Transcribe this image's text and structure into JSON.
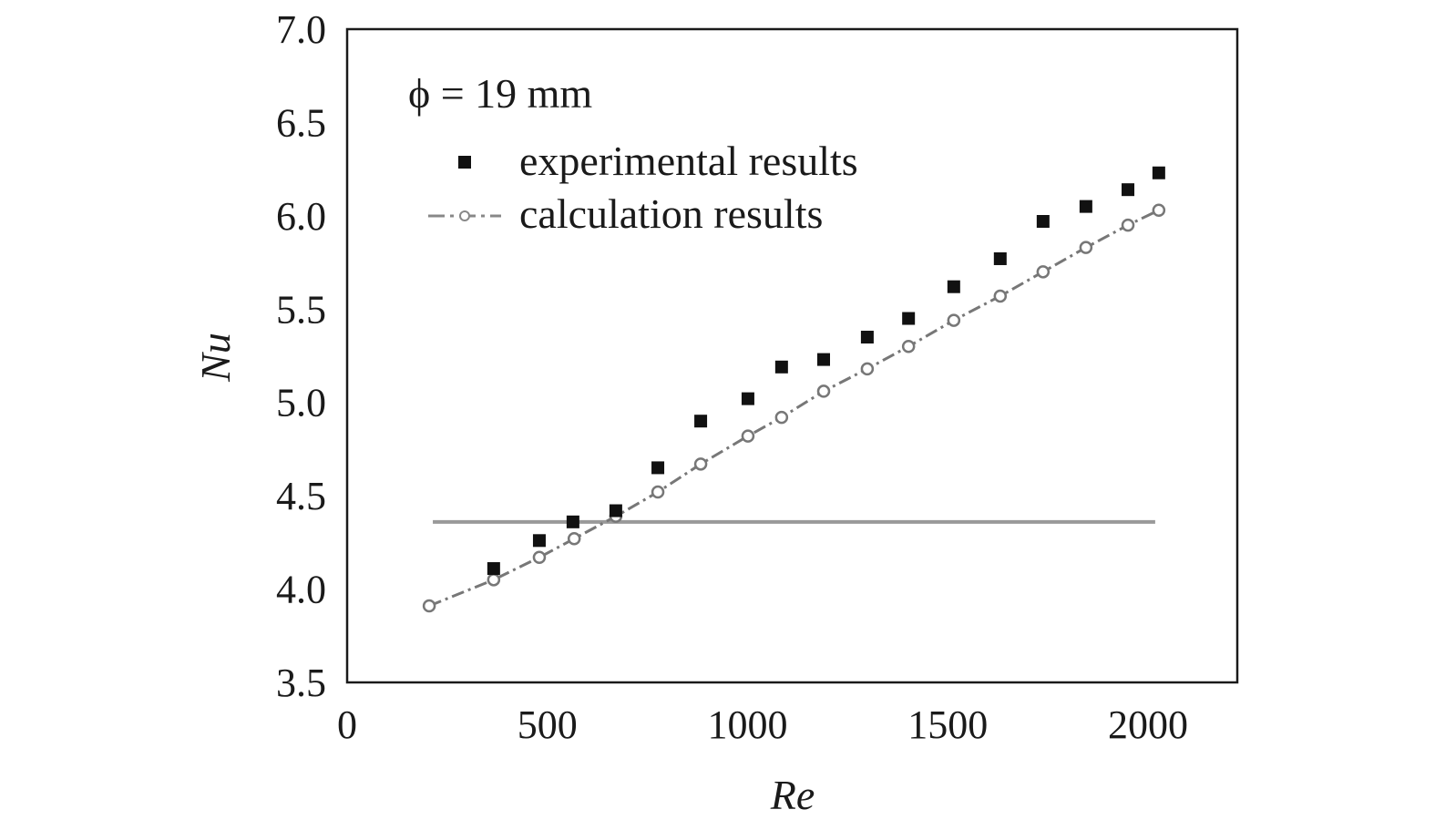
{
  "chart_data": {
    "type": "scatter",
    "title": "",
    "xlabel": "Re",
    "ylabel": "Nu",
    "xlim": [
      0,
      2223
    ],
    "ylim": [
      3.5,
      7.0
    ],
    "xticks": [
      "0",
      "500",
      "1000",
      "1500",
      "2000"
    ],
    "xtick_values": [
      0,
      500,
      1000,
      1500,
      2000
    ],
    "yticks": [
      "3.5",
      "4.0",
      "4.5",
      "5.0",
      "5.5",
      "6.0",
      "6.5",
      "7.0"
    ],
    "ytick_values": [
      3.5,
      4.0,
      4.5,
      5.0,
      5.5,
      6.0,
      6.5,
      7.0
    ],
    "grid": false,
    "legend_position": "top-left",
    "annotation": "ϕ = 19 mm",
    "series": [
      {
        "name": "experimental results",
        "marker": "filled-square",
        "color": "#111111",
        "x": [
          366,
          480,
          564,
          671,
          776,
          883,
          1001,
          1085,
          1190,
          1299,
          1402,
          1515,
          1631,
          1738,
          1845,
          1950,
          2027
        ],
        "y": [
          4.11,
          4.26,
          4.36,
          4.42,
          4.65,
          4.9,
          5.02,
          5.19,
          5.23,
          5.35,
          5.45,
          5.62,
          5.77,
          5.97,
          6.05,
          6.14,
          6.23
        ]
      },
      {
        "name": "calculation results",
        "marker": "open-circle-dashed-line",
        "color": "#777777",
        "x": [
          205,
          366,
          480,
          567,
          671,
          776,
          883,
          1001,
          1085,
          1190,
          1299,
          1402,
          1515,
          1631,
          1738,
          1845,
          1950,
          2027
        ],
        "y": [
          3.91,
          4.05,
          4.17,
          4.27,
          4.39,
          4.52,
          4.67,
          4.82,
          4.92,
          5.06,
          5.18,
          5.3,
          5.44,
          5.57,
          5.7,
          5.83,
          5.95,
          6.03
        ]
      }
    ],
    "reference_line": {
      "y": 4.36,
      "x_start": 214,
      "x_end": 2018,
      "color": "#999999"
    }
  }
}
